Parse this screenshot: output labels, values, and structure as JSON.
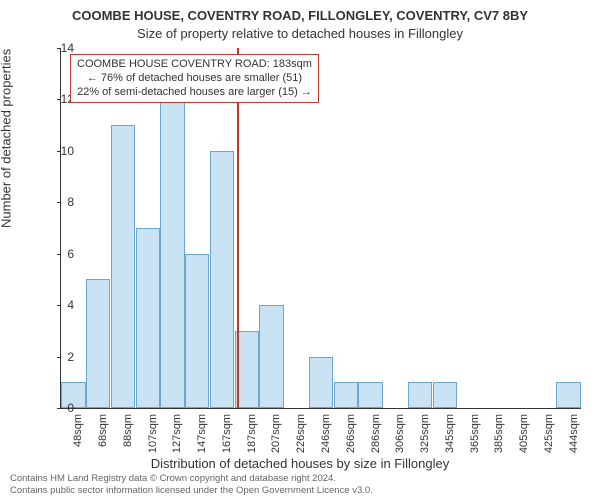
{
  "title_main": "COOMBE HOUSE, COVENTRY ROAD, FILLONGLEY, COVENTRY, CV7 8BY",
  "title_sub": "Size of property relative to detached houses in Fillongley",
  "chart": {
    "type": "histogram",
    "ylabel": "Number of detached properties",
    "xlabel": "Distribution of detached houses by size in Fillongley",
    "ylim": [
      0,
      14
    ],
    "ytick_step": 2,
    "bar_fill": "#c9e3f5",
    "bar_stroke": "#6aa7cf",
    "background": "#ffffff",
    "categories": [
      "48sqm",
      "68sqm",
      "88sqm",
      "107sqm",
      "127sqm",
      "147sqm",
      "167sqm",
      "187sqm",
      "207sqm",
      "226sqm",
      "246sqm",
      "266sqm",
      "286sqm",
      "306sqm",
      "325sqm",
      "345sqm",
      "365sqm",
      "385sqm",
      "405sqm",
      "425sqm",
      "444sqm"
    ],
    "values": [
      1,
      5,
      11,
      7,
      12,
      6,
      10,
      3,
      4,
      0,
      2,
      1,
      1,
      0,
      1,
      1,
      0,
      0,
      0,
      0,
      1
    ],
    "marker": {
      "index_position": 7.1,
      "color": "#c0392b",
      "annotation_lines": [
        "COOMBE HOUSE COVENTRY ROAD: 183sqm",
        "← 76% of detached houses are smaller (51)",
        "22% of semi-detached houses are larger (15) →"
      ]
    }
  },
  "footer_line1": "Contains HM Land Registry data © Crown copyright and database right 2024.",
  "footer_line2": "Contains public sector information licensed under the Open Government Licence v3.0."
}
